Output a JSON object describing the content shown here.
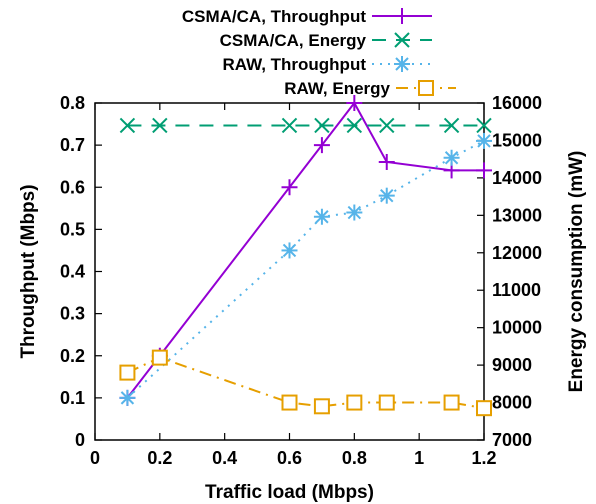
{
  "chart_data": {
    "type": "line",
    "xlabel": "Traffic load (Mbps)",
    "ylabel": "Throughput (Mbps)",
    "y2label": "Energy consumption (mW)",
    "xlim": [
      0,
      1.2
    ],
    "ylim": [
      0,
      0.8
    ],
    "y2lim": [
      7000,
      16000
    ],
    "xticks": [
      "0",
      "0.2",
      "0.4",
      "0.6",
      "0.8",
      "1",
      "1.2"
    ],
    "yticks": [
      "0",
      "0.1",
      "0.2",
      "0.3",
      "0.4",
      "0.5",
      "0.6",
      "0.7",
      "0.8"
    ],
    "y2ticks": [
      "7000",
      "8000",
      "9000",
      "10000",
      "11000",
      "12000",
      "13000",
      "14000",
      "15000",
      "16000"
    ],
    "grid": false,
    "legend_position": "top",
    "series": [
      {
        "name": "CSMA/CA, Throughput",
        "axis": "left",
        "color": "#9400d3",
        "marker": "plus",
        "dash": "solid",
        "x": [
          0.1,
          0.2,
          0.6,
          0.7,
          0.8,
          0.9,
          1.1,
          1.2
        ],
        "values": [
          0.1,
          0.2,
          0.6,
          0.7,
          0.8,
          0.66,
          0.64,
          0.64
        ]
      },
      {
        "name": "CSMA/CA, Energy",
        "axis": "right",
        "color": "#009e73",
        "marker": "x",
        "dash": "dashed",
        "x": [
          0.1,
          0.2,
          0.6,
          0.7,
          0.8,
          0.9,
          1.1,
          1.2
        ],
        "values": [
          15400,
          15400,
          15400,
          15400,
          15400,
          15400,
          15400,
          15400
        ]
      },
      {
        "name": "RAW, Throughput",
        "axis": "left",
        "color": "#56b4e9",
        "marker": "star",
        "dash": "dotted",
        "x": [
          0.1,
          0.6,
          0.7,
          0.8,
          0.9,
          1.1,
          1.2
        ],
        "values": [
          0.1,
          0.45,
          0.53,
          0.54,
          0.58,
          0.67,
          0.71
        ]
      },
      {
        "name": "RAW, Energy",
        "axis": "right",
        "color": "#e69f00",
        "marker": "square",
        "dash": "dashdot",
        "x": [
          0.1,
          0.2,
          0.6,
          0.7,
          0.8,
          0.9,
          1.1,
          1.2
        ],
        "values": [
          8800,
          9200,
          8000,
          7900,
          8000,
          8000,
          8000,
          7850
        ]
      }
    ]
  }
}
